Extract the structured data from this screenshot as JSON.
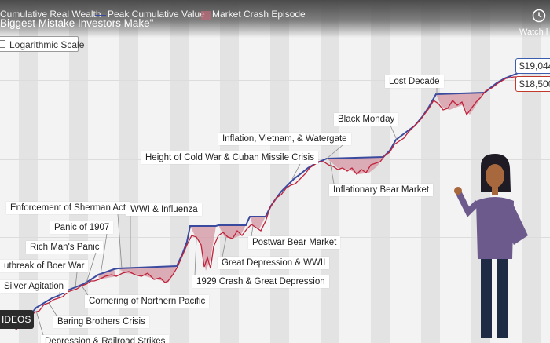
{
  "video": {
    "title": "Biggest Mistake Investors Make\"",
    "watch_later": "Watch l"
  },
  "legend": {
    "items": [
      {
        "label": "Cumulative Real Wealth"
      },
      {
        "label": "Peak Cumulative Value"
      },
      {
        "label": "Market Crash Episode"
      }
    ]
  },
  "controls": {
    "scale_toggle": "Logarithmic Scale",
    "videos_button": "IDEOS"
  },
  "values": {
    "peak": "$19,044",
    "real": "$18,500"
  },
  "colors": {
    "peak_line": "#3a4a9e",
    "real_line": "#c0223b",
    "crash_fill": "#d59aa6",
    "background": "#f3f3f3"
  },
  "annotations": [
    {
      "label": "Lost Decade"
    },
    {
      "label": "Black Monday"
    },
    {
      "label": "Inflation, Vietnam, & Watergate"
    },
    {
      "label": "Height of Cold War & Cuban Missile Crisis"
    },
    {
      "label": "Inflationary Bear Market"
    },
    {
      "label": "Enforcement of Sherman Act"
    },
    {
      "label": "WWI & Influenza"
    },
    {
      "label": "Panic of 1907"
    },
    {
      "label": "Rich Man's Panic"
    },
    {
      "label": "Postwar Bear Market"
    },
    {
      "label": "utbreak of Boer War"
    },
    {
      "label": "Great Depression & WWII"
    },
    {
      "label": "Silver Agitation"
    },
    {
      "label": "1929 Crash & Great Depression"
    },
    {
      "label": "Cornering of Northern Pacific"
    },
    {
      "label": "Baring Brothers Crisis"
    },
    {
      "label": "Depression & Railroad Strikes"
    }
  ]
}
